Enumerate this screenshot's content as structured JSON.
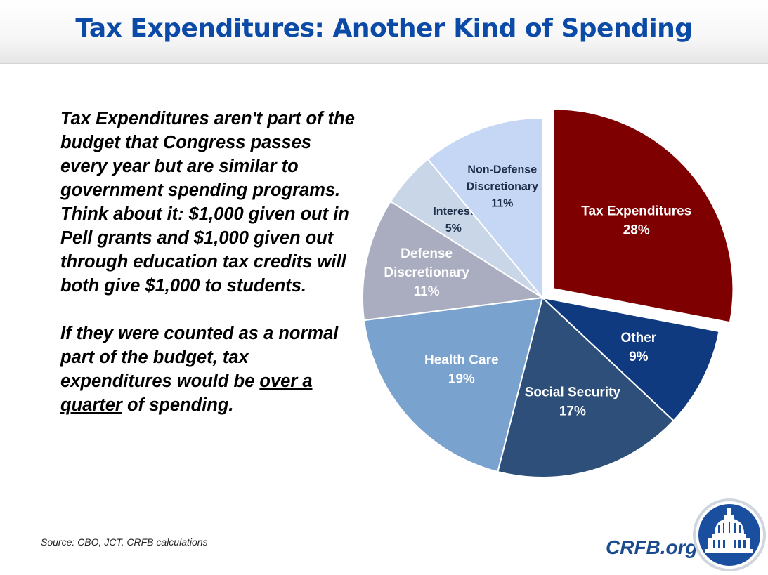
{
  "header": {
    "title": "Tax Expenditures: Another Kind of Spending"
  },
  "body": {
    "paragraph1": "Tax Expenditures aren't part of the budget that Congress passes every year but are similar to government spending programs. Think about it: $1,000 given out in Pell grants and $1,000 given out through education tax credits will both give $1,000 to students.",
    "paragraph2_pre": "If they were counted as a normal part of the budget, tax expenditures would be ",
    "paragraph2_emph": "over a quarter",
    "paragraph2_post": " of spending."
  },
  "footer": {
    "source": "Source: CBO, JCT, CRFB calculations",
    "site": "CRFB.org"
  },
  "chart_data": {
    "type": "pie",
    "title": "",
    "start_angle_deg": 0,
    "direction": "clockwise",
    "series": [
      {
        "name": "Tax Expenditures",
        "lines": [
          "Tax Expenditures"
        ],
        "value": 28,
        "label": "28%",
        "color": "#7f0000",
        "text_color": "#ffffff",
        "exploded": true
      },
      {
        "name": "Other",
        "lines": [
          "Other"
        ],
        "value": 9,
        "label": "9%",
        "color": "#0f3a80",
        "text_color": "#ffffff",
        "exploded": false
      },
      {
        "name": "Social Security",
        "lines": [
          "Social Security"
        ],
        "value": 17,
        "label": "17%",
        "color": "#2d4f79",
        "text_color": "#ffffff",
        "exploded": false
      },
      {
        "name": "Health Care",
        "lines": [
          "Health Care"
        ],
        "value": 19,
        "label": "19%",
        "color": "#7aa2cf",
        "text_color": "#ffffff",
        "exploded": false
      },
      {
        "name": "Defense Discretionary",
        "lines": [
          "Defense",
          "Discretionary"
        ],
        "value": 11,
        "label": "11%",
        "color": "#a9adbf",
        "text_color": "#ffffff",
        "exploded": false
      },
      {
        "name": "Interest",
        "lines": [
          "Interest"
        ],
        "value": 5,
        "label": "5%",
        "color": "#c8d6e8",
        "text_color": "#1f2f4a",
        "exploded": false
      },
      {
        "name": "Non-Defense Discretionary",
        "lines": [
          "Non-Defense",
          "Discretionary"
        ],
        "value": 11,
        "label": "11%",
        "color": "#c5d7f4",
        "text_color": "#1f2f4a",
        "exploded": false
      }
    ]
  }
}
